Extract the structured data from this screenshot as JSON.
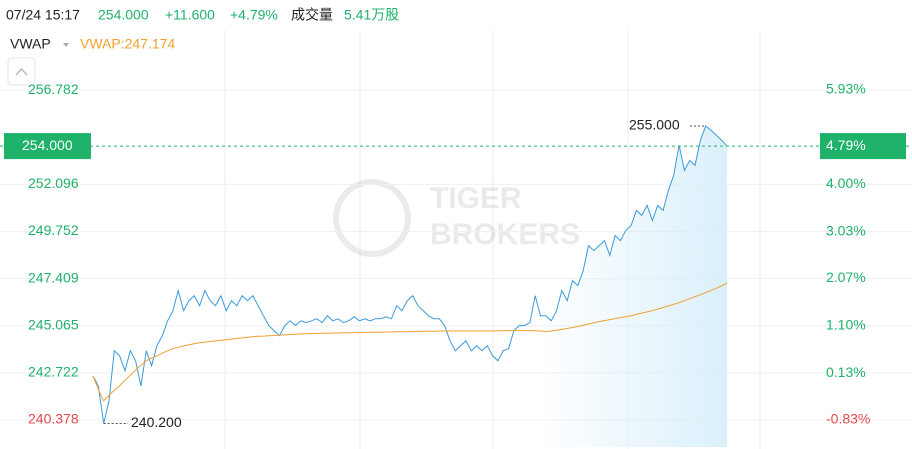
{
  "header": {
    "datetime": "07/24 15:17",
    "price": "254.000",
    "change": "+11.600",
    "change_pct": "+4.79%",
    "volume_label": "成交量",
    "volume": "5.41万股"
  },
  "indicator": {
    "name": "VWAP",
    "value_label": "VWAP:247.174"
  },
  "watermark": [
    "TIGER",
    "BROKERS"
  ],
  "chart_data": {
    "type": "line",
    "ylim": [
      239.032,
      259.774
    ],
    "yticks": [
      {
        "value": 240.378,
        "label": "240.378"
      },
      {
        "value": 242.722,
        "label": "242.722"
      },
      {
        "value": 245.065,
        "label": "245.065"
      },
      {
        "value": 247.409,
        "label": "247.409"
      },
      {
        "value": 249.752,
        "label": "249.752"
      },
      {
        "value": 252.096,
        "label": "252.096"
      },
      {
        "value": 256.782,
        "label": "256.782"
      }
    ],
    "y2lim": [
      -1.383,
      7.159
    ],
    "y2ticks": [
      {
        "value": -0.83,
        "label": "-0.83%"
      },
      {
        "value": 0.13,
        "label": "0.13%"
      },
      {
        "value": 1.1,
        "label": "1.10%"
      },
      {
        "value": 2.07,
        "label": "2.07%"
      },
      {
        "value": 3.03,
        "label": "3.03%"
      },
      {
        "value": 4.0,
        "label": "4.00%"
      },
      {
        "value": 5.93,
        "label": "5.93%"
      }
    ],
    "grid": true,
    "current_price": {
      "value": 254,
      "label": "254.000"
    },
    "current_change": {
      "value": 4.79,
      "label": "4.79%"
    },
    "high_label": {
      "value": 255,
      "label": "255.000"
    },
    "low_label": {
      "value": 240.2,
      "label": "240.200"
    },
    "series": [
      {
        "name": "Price",
        "color": "#3a9ad9",
        "values": [
          242.57,
          242.07,
          240.2,
          241.33,
          243.82,
          243.57,
          242.82,
          243.82,
          243.32,
          242.07,
          243.82,
          243.07,
          244.07,
          244.57,
          245.31,
          245.81,
          246.81,
          245.81,
          246.31,
          246.56,
          246.06,
          246.81,
          246.31,
          246.06,
          246.56,
          245.81,
          246.31,
          246.06,
          246.56,
          246.31,
          246.56,
          246.06,
          245.56,
          245.07,
          244.82,
          244.57,
          245.07,
          245.31,
          245.07,
          245.31,
          245.22,
          245.31,
          245.41,
          245.22,
          245.56,
          245.31,
          245.41,
          245.22,
          245.31,
          245.51,
          245.31,
          245.41,
          245.31,
          245.41,
          245.41,
          245.51,
          245.41,
          246.06,
          245.81,
          246.31,
          246.56,
          246.06,
          245.81,
          245.56,
          245.41,
          245.41,
          245.07,
          244.32,
          243.82,
          244.07,
          244.32,
          243.82,
          244.07,
          243.82,
          244.07,
          243.57,
          243.32,
          243.82,
          243.92,
          244.82,
          245.07,
          245.07,
          245.22,
          246.56,
          245.56,
          245.56,
          245.31,
          245.81,
          246.81,
          246.31,
          247.31,
          247.06,
          247.81,
          249.05,
          248.8,
          249.05,
          249.3,
          248.56,
          249.55,
          249.3,
          249.8,
          250.05,
          250.8,
          250.55,
          251.05,
          250.3,
          251.05,
          250.8,
          251.8,
          252.54,
          254.04,
          252.79,
          253.29,
          253.04,
          254.29,
          255.0,
          254.79,
          254.54,
          254.29,
          254.0
        ]
      },
      {
        "name": "VWAP",
        "color": "#f0a030",
        "values": [
          242.57,
          241.9,
          241.33,
          241.6,
          241.85,
          242.07,
          242.35,
          242.6,
          242.85,
          243.1,
          243.32,
          243.45,
          243.57,
          243.7,
          243.82,
          243.92,
          243.99,
          244.06,
          244.12,
          244.17,
          244.22,
          244.25,
          244.28,
          244.31,
          244.34,
          244.37,
          244.4,
          244.43,
          244.46,
          244.49,
          244.52,
          244.54,
          244.55,
          244.57,
          244.58,
          244.6,
          244.61,
          244.63,
          244.64,
          244.66,
          244.67,
          244.68,
          244.68,
          244.69,
          244.69,
          244.7,
          244.7,
          244.71,
          244.71,
          244.72,
          244.72,
          244.73,
          244.73,
          244.74,
          244.74,
          244.75,
          244.75,
          244.76,
          244.76,
          244.77,
          244.77,
          244.78,
          244.78,
          244.79,
          244.79,
          244.8,
          244.8,
          244.8,
          244.8,
          244.8,
          244.8,
          244.8,
          244.8,
          244.8,
          244.8,
          244.8,
          244.81,
          244.81,
          244.82,
          244.82,
          244.82,
          244.82,
          244.82,
          244.81,
          244.8,
          244.77,
          244.8,
          244.84,
          244.88,
          244.93,
          244.97,
          245.03,
          245.09,
          245.15,
          245.21,
          245.27,
          245.32,
          245.37,
          245.42,
          245.47,
          245.51,
          245.57,
          245.63,
          245.69,
          245.75,
          245.81,
          245.89,
          245.97,
          246.05,
          246.13,
          246.21,
          246.31,
          246.41,
          246.51,
          246.61,
          246.71,
          246.82,
          246.93,
          247.05,
          247.174
        ]
      }
    ]
  }
}
